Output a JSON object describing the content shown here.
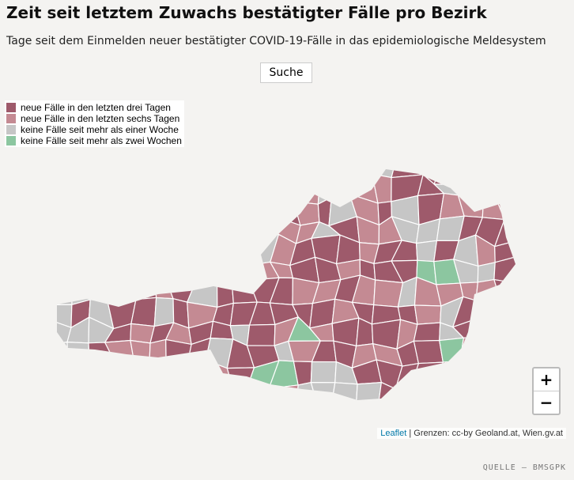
{
  "header": {
    "title": "Zeit seit letztem Zuwachs bestätigter Fälle pro Bezirk",
    "subtitle": "Tage seit dem Einmelden neuer bestätigter COVID-19-Fälle in das epidemiologische Meldesystem"
  },
  "search_button": "Suche",
  "legend": [
    {
      "label": "neue Fälle in den letzten drei Tagen",
      "color": "#9e5a6b"
    },
    {
      "label": "neue Fälle in den letzten sechs Tagen",
      "color": "#c48a93"
    },
    {
      "label": "keine Fälle seit mehr als einer Woche",
      "color": "#c6c6c6"
    },
    {
      "label": "keine Fälle seit mehr als zwei Wochen",
      "color": "#8cc6a0"
    }
  ],
  "zoom": {
    "in": "+",
    "out": "−"
  },
  "attribution": {
    "link": "Leaflet",
    "text": "| Grenzen: cc-by Geoland.at, Wien.gv.at"
  },
  "source": "QUELLE — BMSGPK"
}
